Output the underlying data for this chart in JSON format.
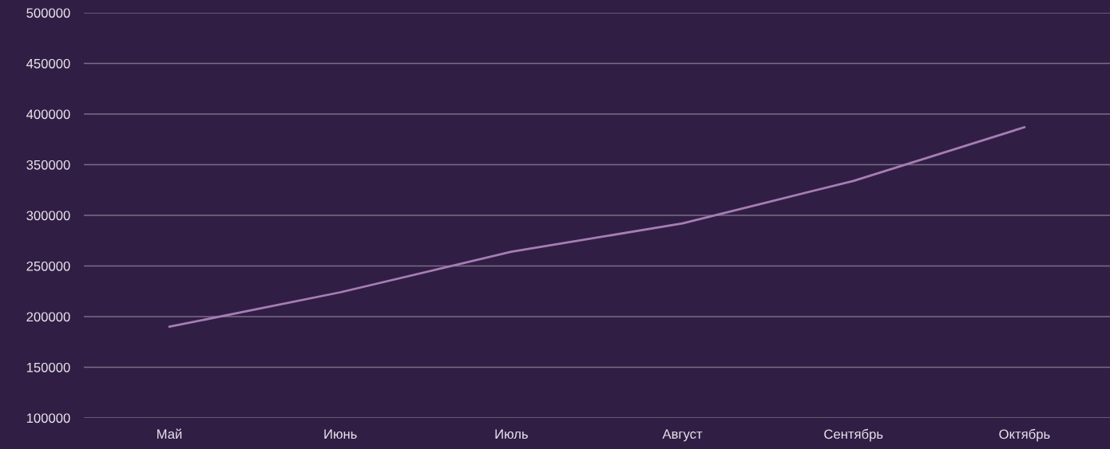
{
  "chart_data": {
    "type": "line",
    "categories": [
      "Май",
      "Июнь",
      "Июль",
      "Август",
      "Сентябрь",
      "Октябрь"
    ],
    "series": [
      {
        "color": "#a57eb3",
        "values": [
          190000,
          224000,
          264000,
          292000,
          334000,
          387000
        ]
      }
    ],
    "ylim": [
      100000,
      500000
    ],
    "yticks": [
      100000,
      150000,
      200000,
      250000,
      300000,
      350000,
      400000,
      450000,
      500000
    ],
    "grid": "y"
  }
}
